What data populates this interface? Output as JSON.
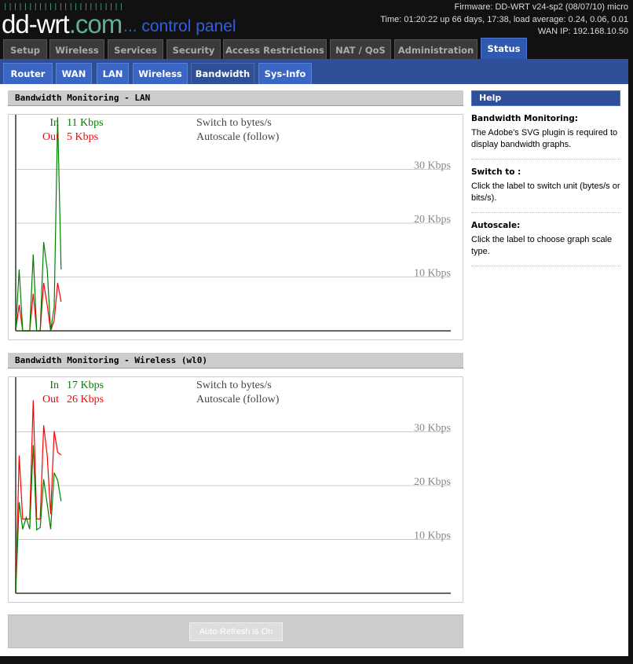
{
  "header": {
    "logo": "dd-wrt",
    "logo_suffix": ".com",
    "subtitle": "... control panel",
    "firmware": "Firmware: DD-WRT v24-sp2 (08/07/10) micro",
    "time": "Time: 01:20:22 up 66 days, 17:38, load average: 0.24, 0.06, 0.01",
    "wan_ip": "WAN IP: 192.168.10.50"
  },
  "tabs": [
    {
      "label": "Setup"
    },
    {
      "label": "Wireless"
    },
    {
      "label": "Services"
    },
    {
      "label": "Security"
    },
    {
      "label": "Access Restrictions"
    },
    {
      "label": "NAT / QoS"
    },
    {
      "label": "Administration"
    },
    {
      "label": "Status",
      "active": true
    }
  ],
  "subtabs": [
    {
      "label": "Router"
    },
    {
      "label": "WAN"
    },
    {
      "label": "LAN"
    },
    {
      "label": "Wireless"
    },
    {
      "label": "Bandwidth",
      "active": true
    },
    {
      "label": "Sys-Info"
    }
  ],
  "sections": [
    {
      "title": "Bandwidth Monitoring - LAN",
      "in_label": "In",
      "in_value": "11 Kbps",
      "out_label": "Out",
      "out_value": "5 Kbps",
      "switch_label": "Switch to bytes/s",
      "autoscale_label": "Autoscale (follow)"
    },
    {
      "title": "Bandwidth Monitoring - Wireless (wl0)",
      "in_label": "In",
      "in_value": "17 Kbps",
      "out_label": "Out",
      "out_value": "26 Kbps",
      "switch_label": "Switch to bytes/s",
      "autoscale_label": "Autoscale (follow)"
    }
  ],
  "refresh_button": "Auto-Refresh is On",
  "help": {
    "title": "Help",
    "items": [
      {
        "title": "Bandwidth Monitoring:",
        "text": "The Adobe's SVG plugin is required to display bandwidth graphs."
      },
      {
        "title": "Switch to :",
        "text": "Click the label to switch unit (bytes/s or bits/s)."
      },
      {
        "title": "Autoscale:",
        "text": "Click the label to choose graph scale type."
      }
    ]
  },
  "colors": {
    "in": "#008000",
    "out": "#ff0000",
    "accent": "#2f4f96"
  },
  "chart_data": [
    {
      "type": "line",
      "ylim": [
        0,
        40
      ],
      "yticks": [
        "10 Kbps",
        "20 Kbps",
        "30 Kbps"
      ],
      "ytick_values": [
        10,
        20,
        30
      ],
      "grid": true,
      "series": [
        {
          "name": "In",
          "color": "#008000",
          "values": [
            0,
            11.4,
            0,
            0,
            0,
            14.2,
            0,
            0,
            16.5,
            11.4,
            0,
            4.4,
            39.7,
            11.4
          ]
        },
        {
          "name": "Out",
          "color": "#ff0000",
          "values": [
            0,
            4.8,
            0,
            0,
            0,
            6.9,
            0,
            0,
            8.9,
            4.8,
            0,
            1.9,
            8.9,
            5.4
          ]
        }
      ]
    },
    {
      "type": "line",
      "ylim": [
        0,
        40
      ],
      "yticks": [
        "10 Kbps",
        "20 Kbps",
        "30 Kbps"
      ],
      "ytick_values": [
        10,
        20,
        30
      ],
      "grid": true,
      "series": [
        {
          "name": "In",
          "color": "#008000",
          "values": [
            0,
            16.9,
            11.9,
            14.1,
            11.9,
            27.5,
            11.8,
            12.2,
            21.2,
            16.6,
            11.9,
            22.4,
            21,
            17.1
          ]
        },
        {
          "name": "Out",
          "color": "#ff0000",
          "values": [
            0,
            25.6,
            13.8,
            13.8,
            13.8,
            35.9,
            13.8,
            13.8,
            31.2,
            25.6,
            14.7,
            30.1,
            26.2,
            25.7
          ]
        }
      ]
    }
  ]
}
